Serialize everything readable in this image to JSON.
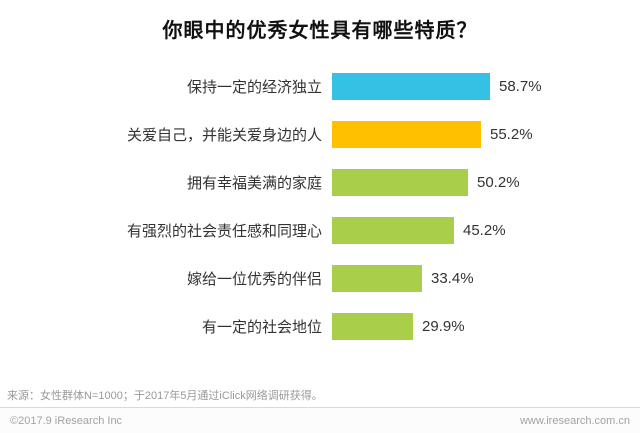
{
  "title": "你眼中的优秀女性具有哪些特质？",
  "chart_data": {
    "type": "bar",
    "orientation": "horizontal",
    "title": "你眼中的优秀女性具有哪些特质？",
    "categories": [
      "保持一定的经济独立",
      "关爱自己，并能关爱身边的人",
      "拥有幸福美满的家庭",
      "有强烈的社会责任感和同理心",
      "嫁给一位优秀的伴侣",
      "有一定的社会地位"
    ],
    "values": [
      58.7,
      55.2,
      50.2,
      45.2,
      33.4,
      29.9
    ],
    "value_labels": [
      "58.7%",
      "55.2%",
      "50.2%",
      "45.2%",
      "33.4%",
      "29.9%"
    ],
    "bar_colors": [
      "#35c1e4",
      "#ffc000",
      "#a9ce4a",
      "#a9ce4a",
      "#a9ce4a",
      "#a9ce4a"
    ],
    "xlim": [
      0,
      60
    ],
    "grid": false,
    "legend": "none"
  },
  "source_note": "来源：女性群体N=1000；于2017年5月通过iClick网络调研获得。",
  "footer": {
    "left": "©2017.9 iResearch Inc",
    "right": "www.iresearch.com.cn"
  }
}
